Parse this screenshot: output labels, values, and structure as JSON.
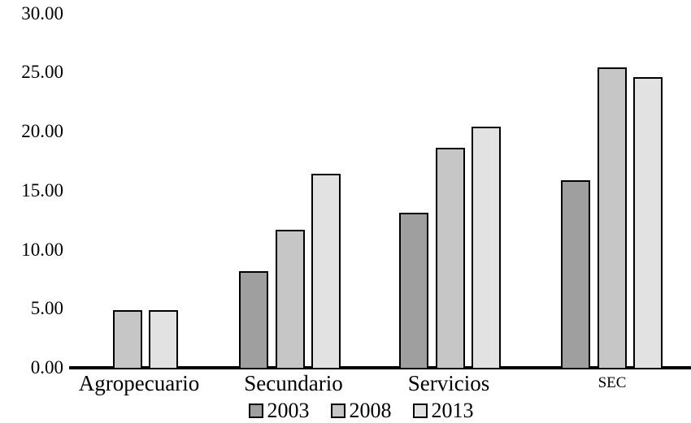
{
  "chart_data": {
    "type": "bar",
    "categories": [
      "Agropecuario",
      "Secundario",
      "Servicios",
      "SEC"
    ],
    "series": [
      {
        "name": "2003",
        "color": "#9f9f9f",
        "values": [
          null,
          8.2,
          13.1,
          15.9
        ]
      },
      {
        "name": "2008",
        "color": "#c6c6c6",
        "values": [
          4.9,
          11.7,
          18.6,
          25.4
        ]
      },
      {
        "name": "2013",
        "color": "#e2e2e2",
        "values": [
          4.9,
          16.4,
          20.4,
          24.6
        ]
      }
    ],
    "title": "",
    "xlabel": "",
    "ylabel": "",
    "ylim": [
      0,
      30
    ],
    "ytick_step": 5,
    "ytick_labels": [
      "0.00",
      "5.00",
      "10.00",
      "15.00",
      "20.00",
      "25.00",
      "30.00"
    ],
    "grid": false,
    "legend_position": "bottom",
    "legend_entries": [
      "2003",
      "2008",
      "2013"
    ],
    "axis_color": "#000000",
    "bar_border_color": "#000000",
    "small_label_categories": [
      "SEC"
    ]
  }
}
